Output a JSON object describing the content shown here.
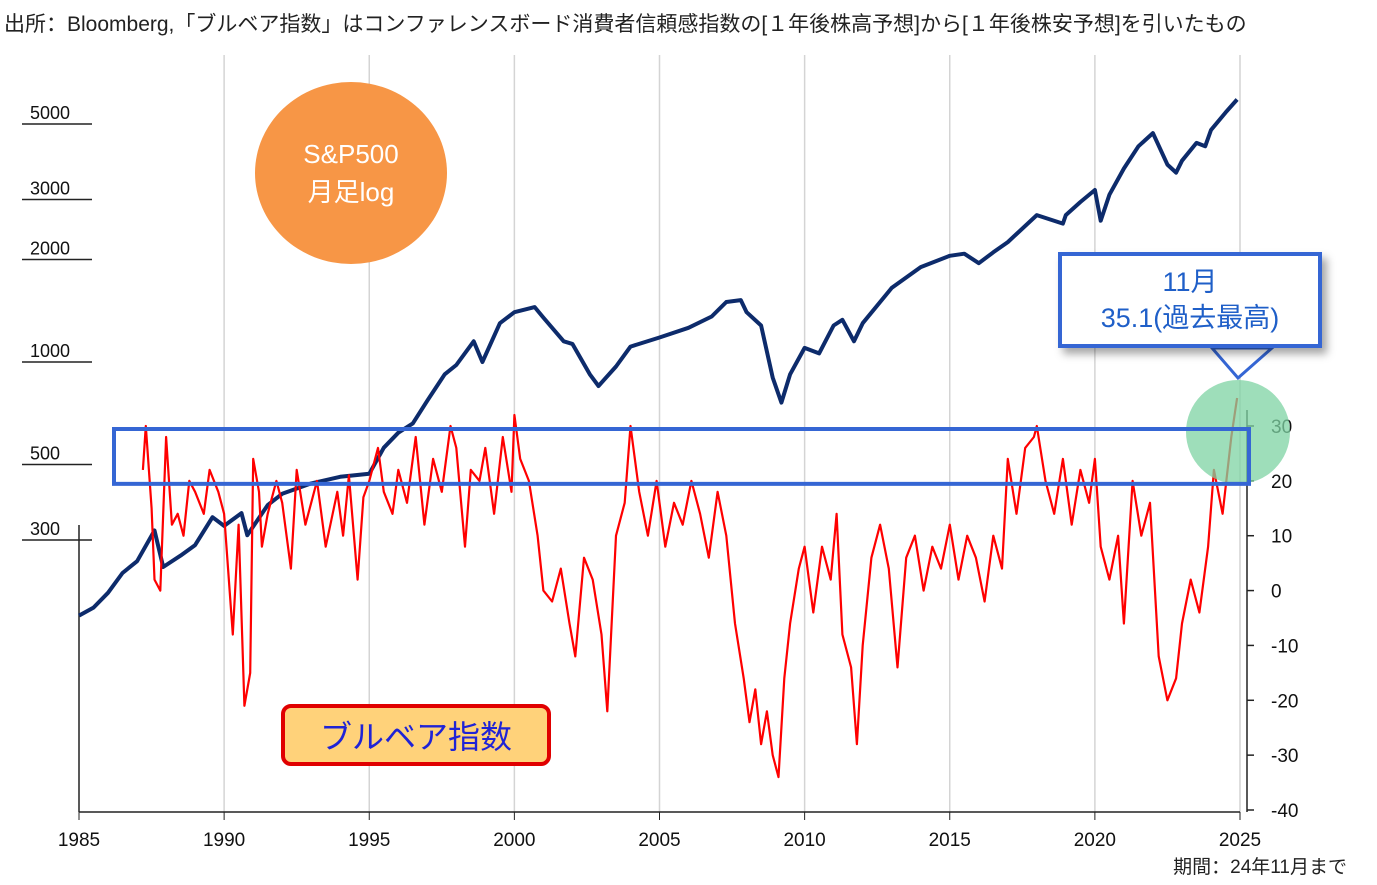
{
  "source_note": "出所：Bloomberg,「ブルベア指数」はコンファレンスボード消費者信頼感指数の[１年後株高予想]から[１年後株安予想]を引いたもの",
  "period_note": "期間：24年11月まで",
  "sp_label": {
    "line1": "S&P500",
    "line2": "月足log"
  },
  "bull_bear_label": "ブルベア指数",
  "callout": {
    "line1": "11月",
    "line2": "35.1(過去最高)"
  },
  "colors": {
    "sp500": "#0d2b6b",
    "bull_bear": "#ff0000",
    "sp_bubble": "#f79646",
    "highlight_box": "#3566d4",
    "green_circle": "#7ed3a3"
  },
  "chart_data": {
    "type": "line",
    "x_ticks": [
      "1985",
      "1990",
      "1995",
      "2000",
      "2005",
      "2010",
      "2015",
      "2020",
      "2025"
    ],
    "xlim": [
      1985,
      2025
    ],
    "left_axis": {
      "scale": "log",
      "ticks": [
        "5000",
        "3000",
        "2000",
        "1000",
        "500",
        "300"
      ]
    },
    "right_axis": {
      "ticks": [
        "30",
        "20",
        "10",
        "0",
        "-10",
        "-20",
        "-30",
        "-40"
      ],
      "ylim": [
        -40,
        35
      ]
    },
    "highlight_band": [
      20,
      30
    ],
    "series": [
      {
        "name": "S&P500",
        "axis": "left",
        "x": [
          1985.0,
          1985.5,
          1986.0,
          1986.5,
          1987.0,
          1987.6,
          1987.9,
          1988.5,
          1989.0,
          1989.6,
          1990.0,
          1990.6,
          1990.8,
          1991.5,
          1992.0,
          1993.0,
          1994.0,
          1995.0,
          1995.5,
          1996.0,
          1996.5,
          1997.0,
          1997.6,
          1998.0,
          1998.6,
          1998.9,
          1999.5,
          2000.0,
          2000.7,
          2001.0,
          2001.7,
          2002.0,
          2002.6,
          2002.9,
          2003.5,
          2004.0,
          2005.0,
          2006.0,
          2006.8,
          2007.3,
          2007.8,
          2008.0,
          2008.5,
          2008.9,
          2009.2,
          2009.5,
          2010.0,
          2010.5,
          2011.0,
          2011.3,
          2011.7,
          2012.0,
          2013.0,
          2014.0,
          2015.0,
          2015.5,
          2016.0,
          2016.5,
          2017.0,
          2018.0,
          2018.9,
          2019.0,
          2019.5,
          2020.0,
          2020.2,
          2020.5,
          2021.0,
          2021.5,
          2022.0,
          2022.5,
          2022.8,
          2023.0,
          2023.5,
          2023.8,
          2024.0,
          2024.5,
          2024.9
        ],
        "y": [
          180,
          190,
          210,
          240,
          260,
          320,
          250,
          270,
          290,
          350,
          330,
          360,
          310,
          380,
          410,
          440,
          460,
          470,
          560,
          620,
          660,
          770,
          920,
          980,
          1150,
          1000,
          1300,
          1400,
          1450,
          1350,
          1150,
          1130,
          920,
          850,
          970,
          1110,
          1180,
          1260,
          1360,
          1500,
          1520,
          1400,
          1280,
          900,
          760,
          920,
          1100,
          1060,
          1280,
          1330,
          1150,
          1300,
          1650,
          1900,
          2050,
          2080,
          1950,
          2100,
          2250,
          2700,
          2550,
          2700,
          2950,
          3200,
          2600,
          3100,
          3700,
          4300,
          4700,
          3800,
          3600,
          3900,
          4400,
          4300,
          4800,
          5400,
          5900
        ]
      },
      {
        "name": "ブルベア指数",
        "axis": "right",
        "x": [
          1987.2,
          1987.3,
          1987.5,
          1987.6,
          1987.8,
          1988.0,
          1988.2,
          1988.4,
          1988.6,
          1988.8,
          1989.0,
          1989.3,
          1989.5,
          1989.8,
          1990.0,
          1990.3,
          1990.5,
          1990.7,
          1990.9,
          1991.0,
          1991.2,
          1991.3,
          1991.5,
          1991.8,
          1992.0,
          1992.3,
          1992.5,
          1992.8,
          1993.0,
          1993.2,
          1993.5,
          1993.7,
          1993.9,
          1994.1,
          1994.3,
          1994.6,
          1994.8,
          1995.0,
          1995.3,
          1995.5,
          1995.8,
          1996.0,
          1996.3,
          1996.6,
          1996.9,
          1997.2,
          1997.5,
          1997.8,
          1998.0,
          1998.3,
          1998.5,
          1998.8,
          1999.0,
          1999.3,
          1999.6,
          1999.9,
          2000.0,
          2000.2,
          2000.5,
          2000.8,
          2001.0,
          2001.3,
          2001.6,
          2001.9,
          2002.1,
          2002.4,
          2002.7,
          2003.0,
          2003.2,
          2003.5,
          2003.8,
          2004.0,
          2004.3,
          2004.6,
          2004.9,
          2005.2,
          2005.5,
          2005.8,
          2006.1,
          2006.4,
          2006.7,
          2007.0,
          2007.3,
          2007.6,
          2007.9,
          2008.1,
          2008.3,
          2008.5,
          2008.7,
          2008.9,
          2009.1,
          2009.3,
          2009.5,
          2009.8,
          2010.0,
          2010.3,
          2010.6,
          2010.9,
          2011.1,
          2011.3,
          2011.6,
          2011.8,
          2012.0,
          2012.3,
          2012.6,
          2012.9,
          2013.2,
          2013.5,
          2013.8,
          2014.1,
          2014.4,
          2014.7,
          2015.0,
          2015.3,
          2015.6,
          2015.9,
          2016.2,
          2016.5,
          2016.8,
          2017.0,
          2017.3,
          2017.6,
          2017.9,
          2018.0,
          2018.3,
          2018.6,
          2018.9,
          2019.2,
          2019.5,
          2019.8,
          2020.0,
          2020.2,
          2020.5,
          2020.8,
          2021.0,
          2021.3,
          2021.6,
          2021.9,
          2022.2,
          2022.5,
          2022.8,
          2023.0,
          2023.3,
          2023.6,
          2023.9,
          2024.1,
          2024.4,
          2024.7,
          2024.9
        ],
        "y": [
          22,
          30,
          15,
          2,
          0,
          28,
          12,
          14,
          10,
          20,
          18,
          14,
          22,
          18,
          14,
          -8,
          12,
          -21,
          -15,
          24,
          18,
          8,
          14,
          20,
          16,
          4,
          22,
          12,
          16,
          20,
          8,
          13,
          18,
          10,
          21,
          2,
          17,
          20,
          26,
          18,
          14,
          22,
          16,
          28,
          12,
          24,
          18,
          30,
          26,
          8,
          22,
          20,
          26,
          14,
          28,
          18,
          32,
          24,
          20,
          10,
          0,
          -2,
          4,
          -6,
          -12,
          6,
          2,
          -8,
          -22,
          10,
          16,
          30,
          18,
          10,
          20,
          8,
          16,
          12,
          20,
          14,
          6,
          18,
          10,
          -6,
          -16,
          -24,
          -18,
          -28,
          -22,
          -30,
          -34,
          -16,
          -6,
          4,
          8,
          -4,
          8,
          2,
          14,
          -8,
          -14,
          -28,
          -10,
          6,
          12,
          4,
          -14,
          6,
          10,
          0,
          8,
          4,
          12,
          2,
          10,
          6,
          -2,
          10,
          4,
          24,
          14,
          26,
          28,
          30,
          20,
          14,
          24,
          12,
          22,
          16,
          24,
          8,
          2,
          10,
          -6,
          20,
          10,
          16,
          -12,
          -20,
          -16,
          -6,
          2,
          -4,
          8,
          22,
          14,
          28,
          35.1
        ]
      }
    ]
  }
}
